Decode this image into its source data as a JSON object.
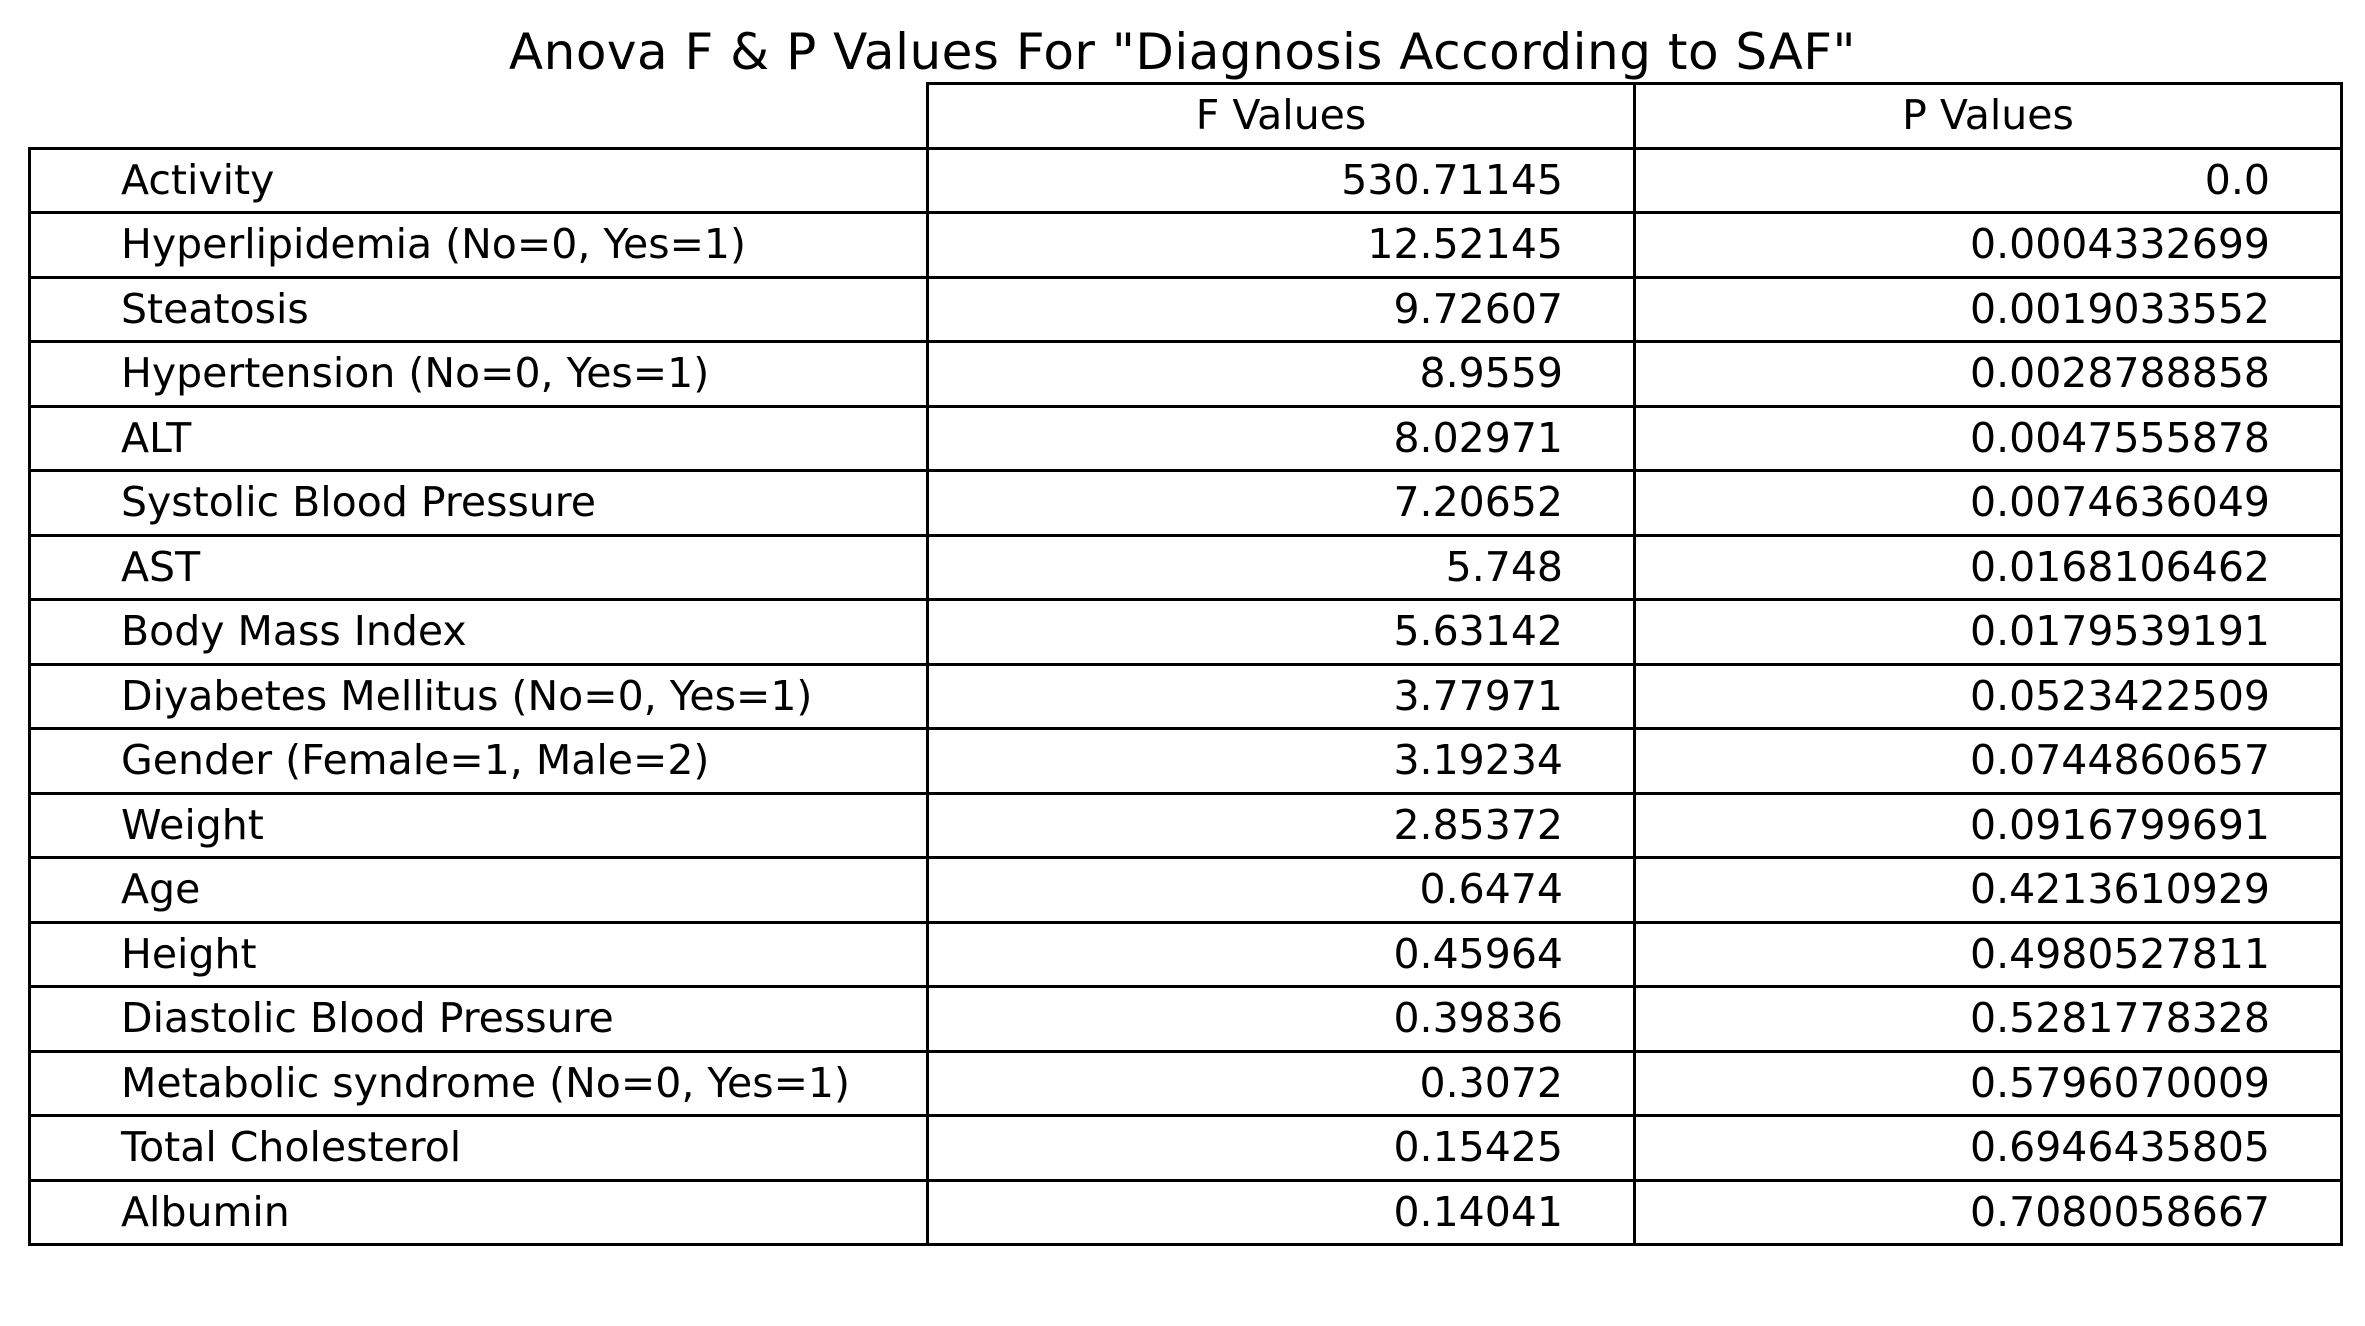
{
  "chart_data": {
    "type": "table",
    "title": "Anova F & P Values For \"Diagnosis According to SAF\"",
    "columns": [
      "F Values",
      "P Values"
    ],
    "rows": [
      {
        "label": "Activity",
        "f": "530.71145",
        "p": "0.0"
      },
      {
        "label": "Hyperlipidemia (No=0, Yes=1)",
        "f": "12.52145",
        "p": "0.0004332699"
      },
      {
        "label": "Steatosis",
        "f": "9.72607",
        "p": "0.0019033552"
      },
      {
        "label": "Hypertension (No=0, Yes=1)",
        "f": "8.9559",
        "p": "0.0028788858"
      },
      {
        "label": "ALT",
        "f": "8.02971",
        "p": "0.0047555878"
      },
      {
        "label": "Systolic Blood Pressure",
        "f": "7.20652",
        "p": "0.0074636049"
      },
      {
        "label": "AST",
        "f": "5.748",
        "p": "0.0168106462"
      },
      {
        "label": "Body Mass Index",
        "f": "5.63142",
        "p": "0.0179539191"
      },
      {
        "label": "Diyabetes Mellitus (No=0, Yes=1)",
        "f": "3.77971",
        "p": "0.0523422509"
      },
      {
        "label": "Gender (Female=1, Male=2)",
        "f": "3.19234",
        "p": "0.0744860657"
      },
      {
        "label": "Weight",
        "f": "2.85372",
        "p": "0.0916799691"
      },
      {
        "label": "Age",
        "f": "0.6474",
        "p": "0.4213610929"
      },
      {
        "label": "Height",
        "f": "0.45964",
        "p": "0.4980527811"
      },
      {
        "label": "Diastolic Blood Pressure",
        "f": "0.39836",
        "p": "0.5281778328"
      },
      {
        "label": "Metabolic syndrome (No=0, Yes=1)",
        "f": "0.3072",
        "p": "0.5796070009"
      },
      {
        "label": "Total Cholesterol",
        "f": "0.15425",
        "p": "0.6946435805"
      },
      {
        "label": "Albumin",
        "f": "0.14041",
        "p": "0.7080058667"
      }
    ]
  }
}
